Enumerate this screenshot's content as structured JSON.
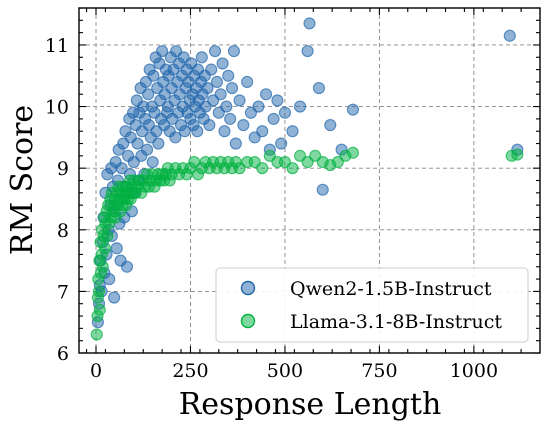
{
  "chart_data": {
    "type": "scatter",
    "title": "",
    "xlabel": "Response Length",
    "ylabel": "RM Score",
    "xlim": [
      -45,
      1175
    ],
    "ylim": [
      6,
      11.6
    ],
    "xticks": [
      0,
      250,
      500,
      750,
      1000
    ],
    "xtick_labels": [
      "0",
      "250",
      "500",
      "750",
      "1000"
    ],
    "yticks": [
      6,
      7,
      8,
      9,
      10,
      11
    ],
    "ytick_labels": [
      "6",
      "7",
      "8",
      "9",
      "10",
      "11"
    ],
    "grid": true,
    "legend_position": "bottom-right",
    "series": [
      {
        "name": "Qwen2-1.5B-Instruct",
        "color": "#2166ac",
        "points": [
          [
            5,
            6.5
          ],
          [
            8,
            6.8
          ],
          [
            10,
            7.1
          ],
          [
            12,
            7.5
          ],
          [
            15,
            7.0
          ],
          [
            18,
            7.8
          ],
          [
            20,
            8.2
          ],
          [
            22,
            7.3
          ],
          [
            25,
            8.6
          ],
          [
            28,
            7.6
          ],
          [
            30,
            8.9
          ],
          [
            33,
            8.0
          ],
          [
            35,
            7.2
          ],
          [
            38,
            8.4
          ],
          [
            40,
            9.0
          ],
          [
            42,
            7.9
          ],
          [
            45,
            8.7
          ],
          [
            48,
            6.9
          ],
          [
            50,
            8.3
          ],
          [
            52,
            9.1
          ],
          [
            55,
            7.7
          ],
          [
            58,
            8.8
          ],
          [
            60,
            9.3
          ],
          [
            62,
            8.1
          ],
          [
            65,
            7.5
          ],
          [
            68,
            9.0
          ],
          [
            70,
            8.5
          ],
          [
            72,
            9.4
          ],
          [
            75,
            8.2
          ],
          [
            78,
            9.6
          ],
          [
            80,
            8.7
          ],
          [
            82,
            7.4
          ],
          [
            85,
            9.2
          ],
          [
            88,
            9.8
          ],
          [
            90,
            8.9
          ],
          [
            92,
            9.5
          ],
          [
            95,
            8.3
          ],
          [
            98,
            9.9
          ],
          [
            100,
            9.1
          ],
          [
            102,
            8.6
          ],
          [
            105,
            9.7
          ],
          [
            108,
            10.1
          ],
          [
            110,
            9.4
          ],
          [
            112,
            8.8
          ],
          [
            115,
            9.9
          ],
          [
            118,
            10.3
          ],
          [
            120,
            9.2
          ],
          [
            122,
            9.6
          ],
          [
            125,
            10.0
          ],
          [
            128,
            8.9
          ],
          [
            130,
            9.8
          ],
          [
            132,
            10.4
          ],
          [
            135,
            9.3
          ],
          [
            138,
            10.2
          ],
          [
            140,
            9.7
          ],
          [
            142,
            10.6
          ],
          [
            145,
            9.5
          ],
          [
            148,
            10.0
          ],
          [
            150,
            9.1
          ],
          [
            152,
            10.5
          ],
          [
            155,
            9.9
          ],
          [
            158,
            10.8
          ],
          [
            160,
            9.6
          ],
          [
            162,
            10.3
          ],
          [
            165,
            9.4
          ],
          [
            168,
            10.7
          ],
          [
            170,
            10.1
          ],
          [
            172,
            9.8
          ],
          [
            175,
            10.9
          ],
          [
            178,
            10.4
          ],
          [
            180,
            9.7
          ],
          [
            182,
            10.2
          ],
          [
            185,
            10.6
          ],
          [
            188,
            9.9
          ],
          [
            190,
            10.0
          ],
          [
            192,
            10.5
          ],
          [
            195,
            9.6
          ],
          [
            198,
            10.8
          ],
          [
            200,
            10.3
          ],
          [
            202,
            9.8
          ],
          [
            205,
            10.6
          ],
          [
            208,
            10.1
          ],
          [
            210,
            9.5
          ],
          [
            212,
            10.9
          ],
          [
            215,
            10.4
          ],
          [
            218,
            9.9
          ],
          [
            220,
            10.7
          ],
          [
            222,
            10.2
          ],
          [
            225,
            9.7
          ],
          [
            228,
            10.5
          ],
          [
            230,
            10.0
          ],
          [
            232,
            10.8
          ],
          [
            235,
            9.6
          ],
          [
            238,
            10.3
          ],
          [
            240,
            10.6
          ],
          [
            242,
            9.9
          ],
          [
            245,
            10.4
          ],
          [
            248,
            10.1
          ],
          [
            250,
            9.8
          ],
          [
            252,
            10.7
          ],
          [
            255,
            10.2
          ],
          [
            258,
            9.7
          ],
          [
            260,
            10.5
          ],
          [
            262,
            10.0
          ],
          [
            265,
            10.3
          ],
          [
            268,
            9.6
          ],
          [
            270,
            10.6
          ],
          [
            272,
            10.1
          ],
          [
            275,
            9.9
          ],
          [
            278,
            10.4
          ],
          [
            280,
            10.8
          ],
          [
            282,
            10.2
          ],
          [
            285,
            9.8
          ],
          [
            288,
            10.5
          ],
          [
            290,
            10.0
          ],
          [
            295,
            10.3
          ],
          [
            300,
            9.7
          ],
          [
            305,
            10.6
          ],
          [
            310,
            10.1
          ],
          [
            315,
            10.9
          ],
          [
            320,
            10.4
          ],
          [
            325,
            9.9
          ],
          [
            330,
            10.2
          ],
          [
            335,
            10.7
          ],
          [
            340,
            9.6
          ],
          [
            345,
            10.0
          ],
          [
            350,
            10.5
          ],
          [
            355,
            9.8
          ],
          [
            360,
            10.3
          ],
          [
            365,
            10.9
          ],
          [
            370,
            9.4
          ],
          [
            380,
            10.1
          ],
          [
            390,
            9.7
          ],
          [
            400,
            10.4
          ],
          [
            410,
            9.9
          ],
          [
            420,
            9.5
          ],
          [
            430,
            10.0
          ],
          [
            440,
            9.6
          ],
          [
            450,
            10.2
          ],
          [
            460,
            9.3
          ],
          [
            470,
            9.8
          ],
          [
            480,
            10.1
          ],
          [
            490,
            9.4
          ],
          [
            500,
            9.9
          ],
          [
            520,
            9.6
          ],
          [
            540,
            10.0
          ],
          [
            560,
            10.9
          ],
          [
            565,
            11.35
          ],
          [
            590,
            10.3
          ],
          [
            600,
            8.65
          ],
          [
            620,
            9.7
          ],
          [
            650,
            9.3
          ],
          [
            680,
            9.95
          ],
          [
            1095,
            11.15
          ],
          [
            1115,
            9.3
          ]
        ]
      },
      {
        "name": "Llama-3.1-8B-Instruct",
        "color": "#00b140",
        "points": [
          [
            2,
            6.3
          ],
          [
            4,
            6.6
          ],
          [
            5,
            6.9
          ],
          [
            6,
            7.2
          ],
          [
            8,
            7.0
          ],
          [
            9,
            7.5
          ],
          [
            10,
            6.7
          ],
          [
            12,
            7.8
          ],
          [
            13,
            7.3
          ],
          [
            15,
            7.6
          ],
          [
            16,
            8.0
          ],
          [
            18,
            7.4
          ],
          [
            20,
            7.9
          ],
          [
            22,
            8.2
          ],
          [
            24,
            7.7
          ],
          [
            25,
            8.1
          ],
          [
            28,
            8.3
          ],
          [
            30,
            7.9
          ],
          [
            32,
            8.4
          ],
          [
            35,
            8.1
          ],
          [
            38,
            8.5
          ],
          [
            40,
            8.2
          ],
          [
            42,
            8.6
          ],
          [
            45,
            8.3
          ],
          [
            48,
            8.4
          ],
          [
            50,
            8.5
          ],
          [
            52,
            8.2
          ],
          [
            55,
            8.6
          ],
          [
            58,
            8.4
          ],
          [
            60,
            8.7
          ],
          [
            62,
            8.5
          ],
          [
            65,
            8.3
          ],
          [
            68,
            8.6
          ],
          [
            70,
            8.4
          ],
          [
            72,
            8.7
          ],
          [
            75,
            8.5
          ],
          [
            78,
            8.6
          ],
          [
            80,
            8.4
          ],
          [
            82,
            8.7
          ],
          [
            85,
            8.5
          ],
          [
            88,
            8.6
          ],
          [
            90,
            8.8
          ],
          [
            92,
            8.5
          ],
          [
            95,
            8.7
          ],
          [
            98,
            8.6
          ],
          [
            100,
            8.8
          ],
          [
            105,
            8.6
          ],
          [
            110,
            8.7
          ],
          [
            115,
            8.8
          ],
          [
            120,
            8.6
          ],
          [
            125,
            8.8
          ],
          [
            130,
            8.7
          ],
          [
            135,
            8.9
          ],
          [
            140,
            8.7
          ],
          [
            145,
            8.8
          ],
          [
            150,
            8.9
          ],
          [
            155,
            8.7
          ],
          [
            160,
            8.8
          ],
          [
            165,
            8.9
          ],
          [
            170,
            8.8
          ],
          [
            175,
            8.9
          ],
          [
            180,
            8.8
          ],
          [
            185,
            8.9
          ],
          [
            190,
            9.0
          ],
          [
            195,
            8.8
          ],
          [
            200,
            8.9
          ],
          [
            210,
            9.0
          ],
          [
            220,
            8.9
          ],
          [
            230,
            9.0
          ],
          [
            240,
            8.9
          ],
          [
            250,
            9.0
          ],
          [
            260,
            9.1
          ],
          [
            270,
            8.9
          ],
          [
            280,
            9.0
          ],
          [
            290,
            9.1
          ],
          [
            300,
            9.0
          ],
          [
            310,
            9.1
          ],
          [
            320,
            9.0
          ],
          [
            330,
            9.1
          ],
          [
            340,
            9.0
          ],
          [
            350,
            9.1
          ],
          [
            360,
            9.0
          ],
          [
            370,
            9.1
          ],
          [
            380,
            9.0
          ],
          [
            400,
            9.1
          ],
          [
            420,
            9.1
          ],
          [
            440,
            9.0
          ],
          [
            460,
            9.2
          ],
          [
            480,
            9.1
          ],
          [
            500,
            9.1
          ],
          [
            520,
            9.0
          ],
          [
            540,
            9.2
          ],
          [
            560,
            9.1
          ],
          [
            580,
            9.2
          ],
          [
            600,
            9.1
          ],
          [
            620,
            9.05
          ],
          [
            640,
            9.1
          ],
          [
            660,
            9.2
          ],
          [
            680,
            9.25
          ],
          [
            1100,
            9.2
          ],
          [
            1115,
            9.22
          ]
        ]
      }
    ]
  }
}
